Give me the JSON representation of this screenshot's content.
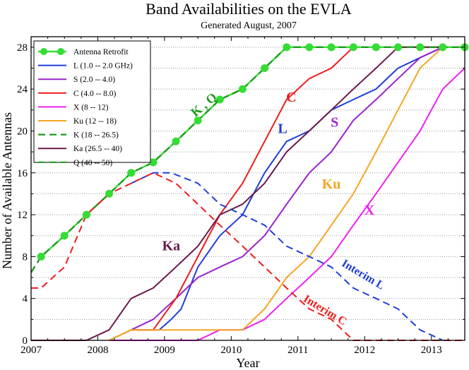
{
  "title": "Band Availabilities on the EVLA",
  "subtitle": "Generated August, 2007",
  "chart_data": {
    "type": "line",
    "xlabel": "Year",
    "ylabel": "Number of Available Antennas",
    "xlim": [
      2007,
      2013.5
    ],
    "ylim": [
      0,
      29
    ],
    "xticks": [
      2007,
      2008,
      2009,
      2010,
      2011,
      2012,
      2013
    ],
    "yticks": [
      0,
      4,
      8,
      12,
      16,
      20,
      24,
      28
    ],
    "yminor": [
      2,
      6,
      10,
      14,
      18,
      22,
      26
    ],
    "grid": "dotted horizontal",
    "legend_position": "top-left",
    "series": [
      {
        "name": "Antenna Retrofit",
        "color": "#33dd33",
        "dash": "solid",
        "width": 2.4,
        "markers": true,
        "x": [
          2007.15,
          2007.5,
          2007.83,
          2008.17,
          2008.5,
          2008.83,
          2009.17,
          2009.5,
          2009.83,
          2010.17,
          2010.5,
          2010.83,
          2011.17,
          2011.5,
          2011.83,
          2012.17,
          2012.5,
          2012.83,
          2013.17,
          2013.5
        ],
        "y": [
          8,
          10,
          12,
          14,
          16,
          17,
          19,
          21,
          23,
          24,
          26,
          28,
          28,
          28,
          28,
          28,
          28,
          28,
          28,
          28
        ]
      },
      {
        "name": "L (1.0 -- 2.0 GHz)",
        "color": "#1f3fd8",
        "dash": "solid",
        "width": 2,
        "x": [
          2008.58,
          2008.92,
          2009.1,
          2009.25,
          2009.5,
          2009.83,
          2010.17,
          2010.5,
          2010.83,
          2011.17,
          2011.5,
          2011.83,
          2012.17,
          2012.5,
          2012.83,
          2013.17
        ],
        "y": [
          1,
          1,
          2,
          3,
          7,
          10,
          12,
          16,
          19,
          20,
          22,
          23,
          24,
          26,
          27,
          28
        ]
      },
      {
        "name": "S (2.0 -- 4.0)",
        "color": "#9a22cc",
        "dash": "solid",
        "width": 2,
        "x": [
          2008.5,
          2008.83,
          2009.17,
          2009.5,
          2009.83,
          2010.17,
          2010.5,
          2010.83,
          2011.17,
          2011.5,
          2011.83,
          2012.17,
          2012.5,
          2012.83,
          2013.17
        ],
        "y": [
          1,
          2,
          4,
          6,
          7,
          8,
          10,
          13,
          16,
          18,
          21,
          23,
          25,
          27,
          28
        ]
      },
      {
        "name": "C (4.0 -- 8.0)",
        "color": "#ee1c1c",
        "dash": "solid",
        "width": 2,
        "x": [
          2008.17,
          2008.5,
          2008.83,
          2009.17,
          2009.5,
          2009.83,
          2010.17,
          2010.5,
          2010.83,
          2011.17,
          2011.5,
          2011.83
        ],
        "y": [
          0,
          1,
          1,
          4,
          8,
          12,
          15,
          19,
          23,
          25,
          26,
          28
        ]
      },
      {
        "name": "X (8 -- 12)",
        "color": "#ee22ee",
        "dash": "solid",
        "width": 2,
        "x": [
          2008.17,
          2008.5,
          2008.83,
          2009.17,
          2009.5,
          2009.83,
          2010.17,
          2010.5,
          2010.83,
          2011.17,
          2011.5,
          2011.83,
          2012.17,
          2012.5,
          2012.83,
          2013.17,
          2013.5
        ],
        "y": [
          0,
          0,
          0,
          0,
          0,
          1,
          1,
          2,
          4,
          6,
          8,
          11,
          14,
          17,
          20,
          24,
          26
        ]
      },
      {
        "name": "Ku (12 -- 18)",
        "color": "#f5a623",
        "dash": "solid",
        "width": 2,
        "x": [
          2008.17,
          2008.5,
          2008.83,
          2009.17,
          2009.5,
          2009.83,
          2010.17,
          2010.5,
          2010.83,
          2011.17,
          2011.5,
          2011.83,
          2012.17,
          2012.5,
          2012.83,
          2013.17
        ],
        "y": [
          0,
          1,
          1,
          1,
          1,
          1,
          1,
          3,
          6,
          8,
          11,
          14,
          18,
          22,
          26,
          28
        ]
      },
      {
        "name": "K (18 -- 26.5)",
        "color": "#1e9a1e",
        "dash": "dash",
        "width": 2.2,
        "x": [
          2007.0,
          2007.15,
          2007.5,
          2007.83,
          2008.17,
          2008.5,
          2008.83,
          2009.17,
          2009.5,
          2009.83,
          2010.17,
          2010.5,
          2010.83,
          2011.17,
          2011.5,
          2011.83,
          2012.17,
          2012.5,
          2012.83,
          2013.17,
          2013.5
        ],
        "y": [
          6.5,
          8,
          10,
          12,
          14,
          16,
          17,
          19,
          21,
          23,
          24,
          26,
          28,
          28,
          28,
          28,
          28,
          28,
          28,
          28,
          28
        ]
      },
      {
        "name": "Ka (26.5 -- 40)",
        "color": "#6b1a4b",
        "dash": "solid",
        "width": 2,
        "x": [
          2007.0,
          2007.5,
          2007.83,
          2008.17,
          2008.5,
          2008.83,
          2009.17,
          2009.5,
          2009.83,
          2010.17,
          2010.5,
          2010.83,
          2011.17,
          2011.5,
          2011.83,
          2012.17,
          2012.5,
          2012.83,
          2013.17
        ],
        "y": [
          0,
          0,
          0,
          1,
          4,
          5,
          7,
          9,
          12,
          13,
          15,
          18,
          20,
          22,
          24,
          26,
          28,
          28,
          28
        ]
      },
      {
        "name": "Q (40 -- 50)",
        "color": "#1e9a1e",
        "dash": "dash",
        "width": 2.2,
        "x": [
          2007.0,
          2007.15,
          2007.5,
          2007.83,
          2008.17,
          2008.5,
          2008.83,
          2009.17,
          2009.5,
          2009.83,
          2010.17,
          2010.5,
          2010.83,
          2011.17,
          2011.5,
          2011.83,
          2012.17,
          2012.5,
          2012.83,
          2013.17,
          2013.5
        ],
        "y": [
          6.5,
          8,
          10,
          12,
          14,
          16,
          17,
          19,
          21,
          23,
          24,
          26,
          28,
          28,
          28,
          28,
          28,
          28,
          28,
          28,
          28
        ]
      },
      {
        "color": "#1f3fd8",
        "dash": "dash",
        "width": 2,
        "x": [
          2008.5,
          2008.83,
          2009.1,
          2009.5,
          2009.83,
          2010.17,
          2010.5,
          2010.83,
          2011.17,
          2011.5,
          2011.83,
          2012.17,
          2012.5,
          2012.83,
          2013.17
        ],
        "y": [
          15,
          16,
          16,
          15,
          13,
          12,
          11,
          9,
          8,
          7,
          5,
          4,
          3,
          1,
          0
        ]
      },
      {
        "color": "#ee1c1c",
        "dash": "dash",
        "width": 2,
        "x": [
          2007.0,
          2007.15,
          2007.5,
          2007.83,
          2008.17,
          2008.5,
          2008.83,
          2009.17,
          2009.5,
          2009.83,
          2010.17,
          2010.5,
          2010.83,
          2011.17,
          2011.5,
          2011.83,
          2012.17,
          2012.5,
          2012.83,
          2013.17,
          2013.5
        ],
        "y": [
          5,
          5,
          7,
          12,
          14,
          15,
          16,
          15,
          13,
          11,
          9,
          7,
          5,
          3,
          2,
          0,
          0,
          0,
          0,
          0,
          0
        ]
      }
    ],
    "annotations": [
      {
        "text": "C",
        "color": "#ee1c1c",
        "x": 2010.9,
        "y": 22.8,
        "angle": 0,
        "size": 20
      },
      {
        "text": "L",
        "color": "#1f3fd8",
        "x": 2010.77,
        "y": 19.8,
        "angle": 0,
        "size": 20
      },
      {
        "text": "S",
        "color": "#9a22cc",
        "x": 2011.55,
        "y": 20.4,
        "angle": 0,
        "size": 20
      },
      {
        "text": "Ku",
        "color": "#f5a623",
        "x": 2011.5,
        "y": 14.5,
        "angle": 0,
        "size": 20
      },
      {
        "text": "X",
        "color": "#ee22ee",
        "x": 2012.07,
        "y": 12.0,
        "angle": 0,
        "size": 20
      },
      {
        "text": "Ka",
        "color": "#6b1a4b",
        "x": 2009.1,
        "y": 8.6,
        "angle": 0,
        "size": 20
      },
      {
        "text": "K , Q",
        "color": "#1e9a1e",
        "x": 2009.63,
        "y": 22.2,
        "angle": -40,
        "size": 18
      },
      {
        "text": "Interim L",
        "color": "#1f3fd8",
        "x": 2011.95,
        "y": 6.0,
        "angle": 31,
        "size": 16
      },
      {
        "text": "Interim C",
        "color": "#ee1c1c",
        "x": 2011.38,
        "y": 2.6,
        "angle": 31,
        "size": 16
      }
    ]
  }
}
